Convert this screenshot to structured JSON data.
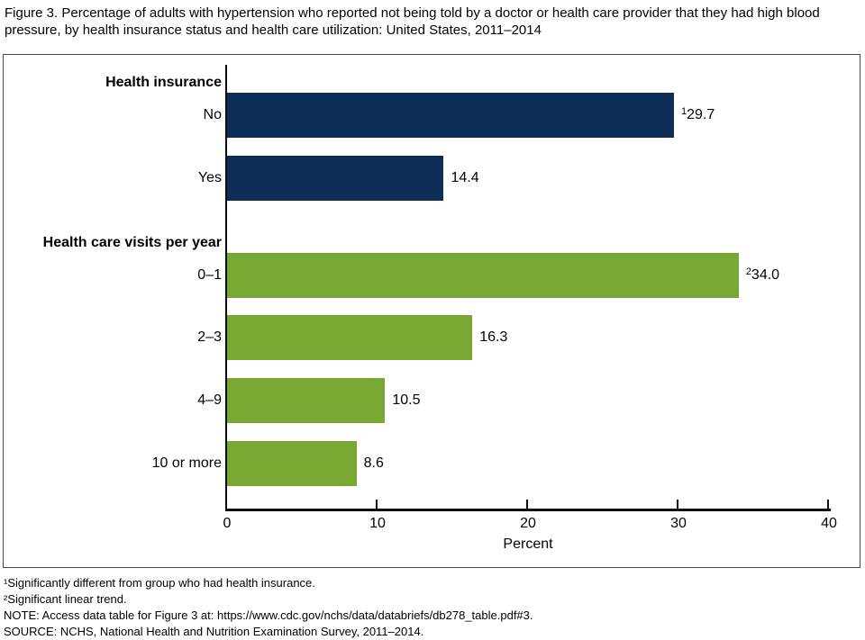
{
  "title": "Figure 3. Percentage of adults with hypertension who reported not being told by a doctor or health care provider that they had high blood pressure, by health insurance status and health care utilization: United States, 2011–2014",
  "chart_data": {
    "type": "bar",
    "orientation": "horizontal",
    "title": "Figure 3. Percentage of adults with hypertension who reported not being told by a doctor or health care provider that they had high blood pressure, by health insurance status and health care utilization: United States, 2011–2014",
    "xlabel": "Percent",
    "ylabel": "",
    "xlim": [
      0,
      40
    ],
    "xticks": [
      0,
      10,
      20,
      30,
      40
    ],
    "grid": false,
    "legend": false,
    "value_labels_shown": true,
    "axis_color": "#0d0d0d",
    "groups": [
      {
        "header": "Health insurance",
        "color": "#0e2d57",
        "bars": [
          {
            "label": "No",
            "value": 29.7,
            "display": "29.7",
            "superscript": "1"
          },
          {
            "label": "Yes",
            "value": 14.4,
            "display": "14.4",
            "superscript": ""
          }
        ]
      },
      {
        "header": "Health care visits per year",
        "color": "#76a832",
        "bars": [
          {
            "label": "0–1",
            "value": 34.0,
            "display": "34.0",
            "superscript": "2"
          },
          {
            "label": "2–3",
            "value": 16.3,
            "display": "16.3",
            "superscript": ""
          },
          {
            "label": "4–9",
            "value": 10.5,
            "display": "10.5",
            "superscript": ""
          },
          {
            "label": "10 or more",
            "value": 8.6,
            "display": "8.6",
            "superscript": ""
          }
        ]
      }
    ]
  },
  "footnotes": [
    "¹Significantly different from group who had health insurance.",
    "²Significant linear trend.",
    "NOTE: Access data table for Figure 3 at: https://www.cdc.gov/nchs/data/databriefs/db278_table.pdf#3.",
    "SOURCE: NCHS, National Health and Nutrition Examination Survey, 2011–2014."
  ]
}
